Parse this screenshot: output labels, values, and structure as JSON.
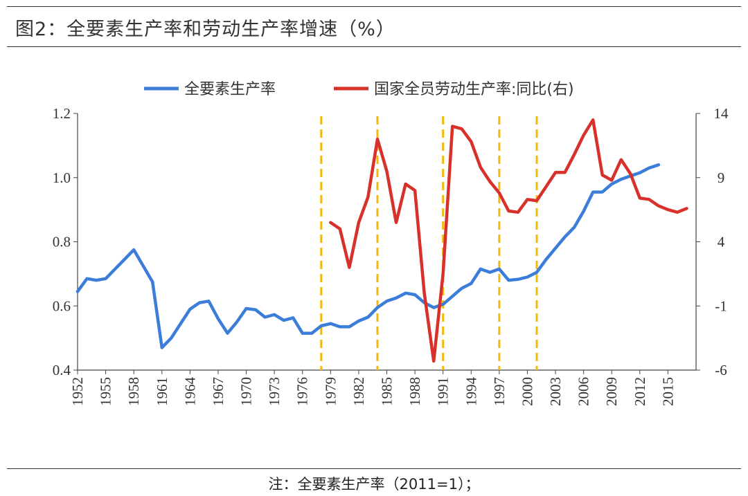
{
  "title": "图2：全要素生产率和劳动生产率增速（%）",
  "footnote": "注：全要素生产率（2011=1）；",
  "chart_data": {
    "type": "line",
    "x_ticks": [
      "1952",
      "1955",
      "1958",
      "1961",
      "1964",
      "1967",
      "1970",
      "1973",
      "1976",
      "1979",
      "1982",
      "1985",
      "1988",
      "1991",
      "1994",
      "1997",
      "2000",
      "2003",
      "2006",
      "2009",
      "2012",
      "2015"
    ],
    "xlim": [
      1952,
      2018
    ],
    "y_left": {
      "lim": [
        0.4,
        1.2
      ],
      "ticks": [
        "0.4",
        "0.6",
        "0.8",
        "1.0",
        "1.2"
      ]
    },
    "y_right": {
      "lim": [
        -6,
        14
      ],
      "ticks": [
        "-6",
        "-1",
        "4",
        "9",
        "14"
      ]
    },
    "vlines": [
      1978,
      1984,
      1991,
      1997,
      2001
    ],
    "series": [
      {
        "name": "全要素生产率",
        "axis": "left",
        "color": "#3b7dd8",
        "x": [
          1952,
          1953,
          1954,
          1955,
          1956,
          1957,
          1958,
          1959,
          1960,
          1961,
          1962,
          1963,
          1964,
          1965,
          1966,
          1967,
          1968,
          1969,
          1970,
          1971,
          1972,
          1973,
          1974,
          1975,
          1976,
          1977,
          1978,
          1979,
          1980,
          1981,
          1982,
          1983,
          1984,
          1985,
          1986,
          1987,
          1988,
          1989,
          1990,
          1991,
          1992,
          1993,
          1994,
          1995,
          1996,
          1997,
          1998,
          1999,
          2000,
          2001,
          2002,
          2003,
          2004,
          2005,
          2006,
          2007,
          2008,
          2009,
          2010,
          2011,
          2012,
          2013,
          2014
        ],
        "y": [
          0.645,
          0.685,
          0.68,
          0.685,
          0.715,
          0.745,
          0.775,
          0.725,
          0.675,
          0.47,
          0.5,
          0.545,
          0.59,
          0.61,
          0.615,
          0.56,
          0.515,
          0.55,
          0.592,
          0.588,
          0.565,
          0.573,
          0.555,
          0.563,
          0.515,
          0.515,
          0.538,
          0.545,
          0.535,
          0.535,
          0.553,
          0.565,
          0.595,
          0.615,
          0.625,
          0.64,
          0.635,
          0.61,
          0.595,
          0.605,
          0.63,
          0.655,
          0.67,
          0.715,
          0.705,
          0.715,
          0.68,
          0.683,
          0.69,
          0.705,
          0.745,
          0.78,
          0.815,
          0.845,
          0.895,
          0.955,
          0.955,
          0.98,
          0.995,
          1.005,
          1.015,
          1.03,
          1.04
        ]
      },
      {
        "name": "国家全员劳动生产率:同比(右)",
        "axis": "right",
        "color": "#d8312b",
        "x": [
          1979,
          1980,
          1981,
          1982,
          1983,
          1984,
          1985,
          1986,
          1987,
          1988,
          1989,
          1990,
          1991,
          1992,
          1993,
          1994,
          1995,
          1996,
          1997,
          1998,
          1999,
          2000,
          2001,
          2002,
          2003,
          2004,
          2005,
          2006,
          2007,
          2008,
          2009,
          2010,
          2011,
          2012,
          2013,
          2014,
          2015,
          2016,
          2017
        ],
        "y": [
          5.5,
          5,
          2,
          5.5,
          7.5,
          12,
          9.5,
          5.5,
          8.5,
          8,
          0,
          -5.3,
          1.5,
          13,
          12.8,
          11.8,
          9.8,
          8.7,
          7.8,
          6.4,
          6.3,
          7.3,
          7.2,
          8.3,
          9.4,
          9.4,
          10.8,
          12.3,
          13.5,
          9.2,
          8.8,
          10.4,
          9.3,
          7.4,
          7.3,
          6.8,
          6.5,
          6.3,
          6.6
        ]
      }
    ]
  }
}
